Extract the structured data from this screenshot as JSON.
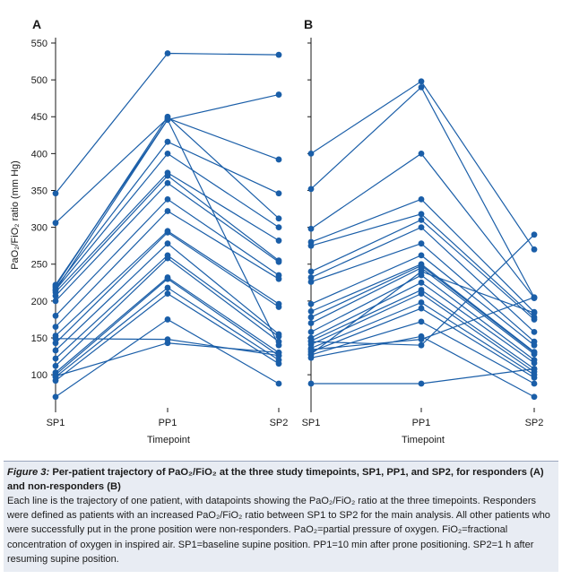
{
  "chart_data": [
    {
      "type": "line",
      "panel": "A",
      "ylabel": "PaO2/FiO2 ratio (mm Hg)",
      "xlabel": "Timepoint",
      "categories": [
        "SP1",
        "PP1",
        "SP2"
      ],
      "ylim": [
        60,
        550
      ],
      "yticks": [
        100,
        150,
        200,
        250,
        300,
        350,
        400,
        450,
        500,
        550
      ],
      "grid": false,
      "series": [
        {
          "values": [
            346,
            536,
            534
          ]
        },
        {
          "values": [
            306,
            448,
            392
          ]
        },
        {
          "values": [
            222,
            446,
            480
          ]
        },
        {
          "values": [
            220,
            450,
            312
          ]
        },
        {
          "values": [
            218,
            416,
            346
          ]
        },
        {
          "values": [
            215,
            400,
            300
          ]
        },
        {
          "values": [
            212,
            374,
            282
          ]
        },
        {
          "values": [
            207,
            370,
            255
          ]
        },
        {
          "values": [
            200,
            360,
            253
          ]
        },
        {
          "values": [
            180,
            338,
            235
          ]
        },
        {
          "values": [
            165,
            322,
            230
          ]
        },
        {
          "values": [
            153,
            295,
            196
          ]
        },
        {
          "values": [
            143,
            293,
            192
          ]
        },
        {
          "values": [
            133,
            278,
            155
          ]
        },
        {
          "values": [
            122,
            262,
            152
          ]
        },
        {
          "values": [
            112,
            258,
            145
          ]
        },
        {
          "values": [
            103,
            232,
            130
          ]
        },
        {
          "values": [
            100,
            230,
            126
          ]
        },
        {
          "values": [
            97,
            218,
            120
          ]
        },
        {
          "values": [
            92,
            210,
            115
          ]
        },
        {
          "values": [
            70,
            175,
            88
          ]
        },
        {
          "values": [
            149,
            148,
            126
          ]
        },
        {
          "values": [
            98,
            143,
            130
          ]
        },
        {
          "values": [
            215,
            446,
            140
          ]
        }
      ]
    },
    {
      "type": "line",
      "panel": "B",
      "xlabel": "Timepoint",
      "categories": [
        "SP1",
        "PP1",
        "SP2"
      ],
      "ylim": [
        60,
        550
      ],
      "grid": false,
      "series": [
        {
          "values": [
            400,
            498,
            270
          ]
        },
        {
          "values": [
            352,
            490,
            205
          ]
        },
        {
          "values": [
            298,
            400,
            204
          ]
        },
        {
          "values": [
            280,
            338,
            185
          ]
        },
        {
          "values": [
            275,
            318,
            178
          ]
        },
        {
          "values": [
            240,
            310,
            175
          ]
        },
        {
          "values": [
            232,
            300,
            158
          ]
        },
        {
          "values": [
            226,
            278,
            145
          ]
        },
        {
          "values": [
            196,
            262,
            140
          ]
        },
        {
          "values": [
            186,
            250,
            131
          ]
        },
        {
          "values": [
            178,
            248,
            130
          ]
        },
        {
          "values": [
            170,
            245,
            128
          ]
        },
        {
          "values": [
            158,
            235,
            120
          ]
        },
        {
          "values": [
            150,
            225,
            116
          ]
        },
        {
          "values": [
            146,
            215,
            108
          ]
        },
        {
          "values": [
            141,
            210,
            104
          ]
        },
        {
          "values": [
            136,
            198,
            100
          ]
        },
        {
          "values": [
            131,
            190,
            96
          ]
        },
        {
          "values": [
            127,
            172,
            88
          ]
        },
        {
          "values": [
            123,
            152,
            70
          ]
        },
        {
          "values": [
            88,
            88,
            108
          ]
        },
        {
          "values": [
            145,
            140,
            290
          ]
        },
        {
          "values": [
            134,
            148,
            205
          ]
        },
        {
          "values": [
            128,
            240,
            184
          ]
        }
      ]
    }
  ],
  "figure": {
    "panel_a_label": "A",
    "panel_b_label": "B",
    "ylabel": "PaO₂/FiO₂ ratio (mm Hg)",
    "xlabel_a": "Timepoint",
    "xlabel_b": "Timepoint",
    "line_color": "#1a5ea8"
  },
  "caption": {
    "figure_label": "Figure 3:",
    "title": "Per-patient trajectory of PaO₂/FiO₂ at the three study timepoints, SP1, PP1, and SP2, for responders (A) and non-responders (B)",
    "body": "Each line is the trajectory of one patient, with datapoints showing the PaO₂/FiO₂ ratio at the three timepoints. Responders were defined as patients with an increased PaO₂/FiO₂ ratio between SP1 to SP2 for the main analysis. All other patients who were successfully put in the prone position were non-responders. PaO₂=partial pressure of oxygen. FiO₂=fractional concentration of oxygen in inspired air. SP1=baseline supine position. PP1=10 min after prone positioning. SP2=1 h after resuming supine position."
  }
}
